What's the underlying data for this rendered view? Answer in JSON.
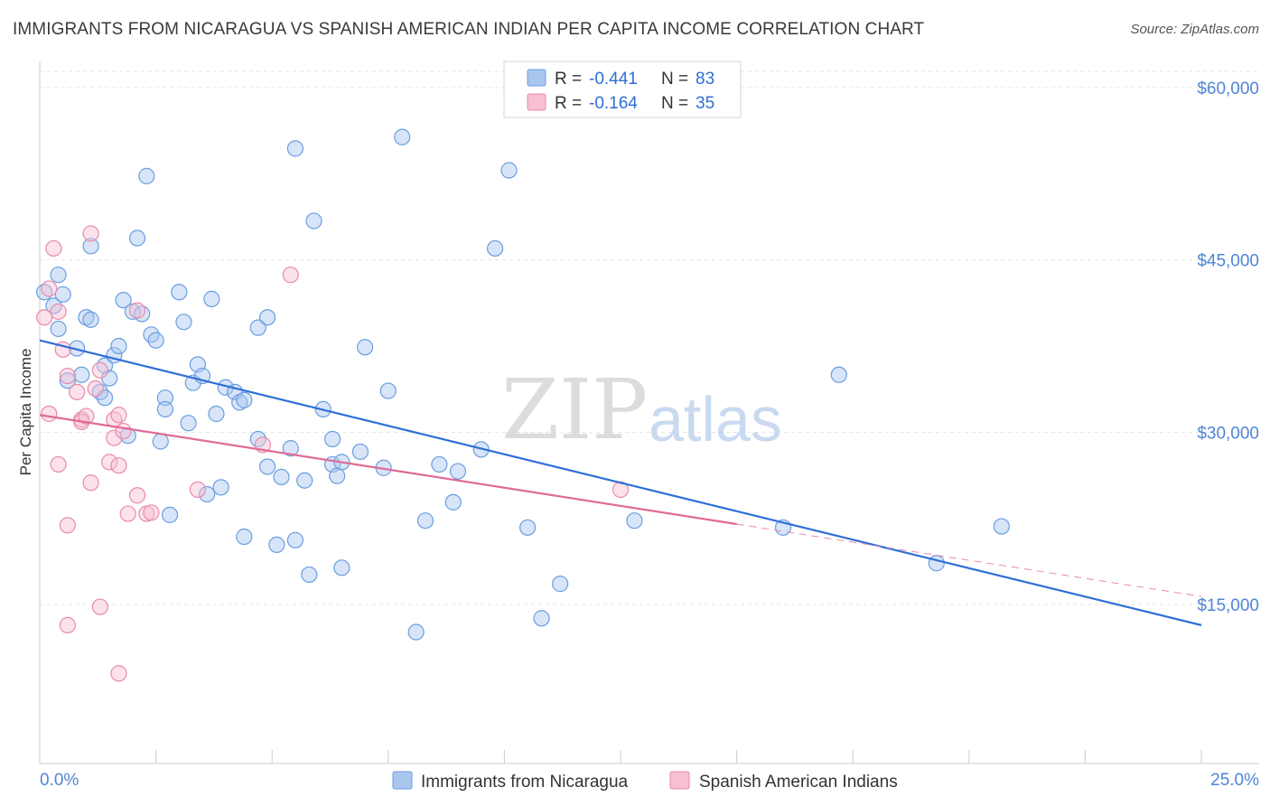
{
  "title": "IMMIGRANTS FROM NICARAGUA VS SPANISH AMERICAN INDIAN PER CAPITA INCOME CORRELATION CHART",
  "source": "Source: ZipAtlas.com",
  "watermark": {
    "zip": "ZIP",
    "atlas": "atlas"
  },
  "legend": {
    "rows": [
      {
        "r_label": "R = ",
        "r_value": "-0.441",
        "n_label": "N = ",
        "n_value": "83",
        "color": "#a9c6ef",
        "edge": "#6a9ee0"
      },
      {
        "r_label": "R = ",
        "r_value": "-0.164",
        "n_label": "N = ",
        "n_value": "35",
        "color": "#f7bfd2",
        "edge": "#e88aab"
      }
    ]
  },
  "chart_data": {
    "type": "scatter",
    "title": "IMMIGRANTS FROM NICARAGUA VS SPANISH AMERICAN INDIAN PER CAPITA INCOME CORRELATION CHART",
    "xlabel": "",
    "ylabel": "Per Capita Income",
    "xlim": [
      0,
      25
    ],
    "ylim": [
      3000,
      63000
    ],
    "x_tick_labels": [
      "0.0%",
      "25.0%"
    ],
    "y_ticks": [
      15000,
      30000,
      45000,
      60000
    ],
    "y_tick_labels": [
      "$15,000",
      "$30,000",
      "$45,000",
      "$60,000"
    ],
    "grid": true,
    "legend_position": "top-center",
    "series": [
      {
        "name": "Immigrants from Nicaragua",
        "color": "#6a9ee0",
        "fill": "#a9c6ef",
        "trend": {
          "x": [
            0,
            25
          ],
          "y": [
            38000,
            13200
          ]
        },
        "points": [
          [
            0.1,
            42200
          ],
          [
            0.3,
            41000
          ],
          [
            0.4,
            43700
          ],
          [
            0.5,
            42000
          ],
          [
            0.4,
            39000
          ],
          [
            0.6,
            34500
          ],
          [
            0.8,
            37300
          ],
          [
            0.9,
            35000
          ],
          [
            1.0,
            40000
          ],
          [
            1.1,
            39800
          ],
          [
            1.1,
            46200
          ],
          [
            1.3,
            33500
          ],
          [
            1.4,
            35800
          ],
          [
            1.4,
            33000
          ],
          [
            1.5,
            34700
          ],
          [
            1.6,
            36700
          ],
          [
            1.7,
            37500
          ],
          [
            1.8,
            41500
          ],
          [
            1.9,
            29700
          ],
          [
            2.0,
            40500
          ],
          [
            2.1,
            46900
          ],
          [
            2.2,
            40300
          ],
          [
            2.3,
            52300
          ],
          [
            2.4,
            38500
          ],
          [
            2.5,
            38000
          ],
          [
            2.6,
            29200
          ],
          [
            2.7,
            33000
          ],
          [
            2.7,
            32000
          ],
          [
            2.8,
            22800
          ],
          [
            3.0,
            42200
          ],
          [
            3.1,
            39600
          ],
          [
            3.2,
            30800
          ],
          [
            3.3,
            34300
          ],
          [
            3.4,
            35900
          ],
          [
            3.5,
            34900
          ],
          [
            3.6,
            24600
          ],
          [
            3.7,
            41600
          ],
          [
            3.8,
            31600
          ],
          [
            3.9,
            25200
          ],
          [
            4.0,
            33900
          ],
          [
            4.2,
            33500
          ],
          [
            4.3,
            32600
          ],
          [
            4.4,
            32800
          ],
          [
            4.4,
            20900
          ],
          [
            4.7,
            29400
          ],
          [
            4.7,
            39100
          ],
          [
            4.9,
            27000
          ],
          [
            4.9,
            40000
          ],
          [
            5.1,
            20200
          ],
          [
            5.2,
            26100
          ],
          [
            5.4,
            28600
          ],
          [
            5.5,
            20600
          ],
          [
            5.5,
            54700
          ],
          [
            5.7,
            25800
          ],
          [
            5.8,
            17600
          ],
          [
            5.9,
            48400
          ],
          [
            6.1,
            32000
          ],
          [
            6.3,
            29400
          ],
          [
            6.3,
            27200
          ],
          [
            6.4,
            26200
          ],
          [
            6.5,
            18200
          ],
          [
            6.5,
            27400
          ],
          [
            6.9,
            28300
          ],
          [
            7.0,
            37400
          ],
          [
            7.4,
            26900
          ],
          [
            7.5,
            33600
          ],
          [
            7.8,
            55700
          ],
          [
            8.1,
            12600
          ],
          [
            8.3,
            22300
          ],
          [
            8.6,
            27200
          ],
          [
            8.9,
            23900
          ],
          [
            9.0,
            26600
          ],
          [
            9.5,
            28500
          ],
          [
            9.8,
            46000
          ],
          [
            10.1,
            52800
          ],
          [
            10.5,
            21700
          ],
          [
            10.8,
            13800
          ],
          [
            11.2,
            16800
          ],
          [
            12.8,
            22300
          ],
          [
            16.0,
            21700
          ],
          [
            17.2,
            35000
          ],
          [
            19.3,
            18600
          ],
          [
            20.7,
            21800
          ]
        ]
      },
      {
        "name": "Spanish American Indians",
        "color": "#e88aab",
        "fill": "#f7bfd2",
        "trend": {
          "x": [
            0,
            15
          ],
          "y": [
            31500,
            22000
          ]
        },
        "trend_dashed": {
          "x": [
            15,
            25
          ],
          "y": [
            22000,
            15700
          ]
        },
        "points": [
          [
            0.1,
            40000
          ],
          [
            0.2,
            31600
          ],
          [
            0.2,
            42500
          ],
          [
            0.3,
            46000
          ],
          [
            0.4,
            40500
          ],
          [
            0.4,
            27200
          ],
          [
            0.5,
            37200
          ],
          [
            0.6,
            21900
          ],
          [
            0.6,
            13200
          ],
          [
            0.6,
            34900
          ],
          [
            0.8,
            33500
          ],
          [
            0.9,
            31100
          ],
          [
            0.9,
            30900
          ],
          [
            1.0,
            31400
          ],
          [
            1.1,
            47300
          ],
          [
            1.1,
            25600
          ],
          [
            1.2,
            33800
          ],
          [
            1.3,
            14800
          ],
          [
            1.3,
            35400
          ],
          [
            1.5,
            27400
          ],
          [
            1.6,
            29500
          ],
          [
            1.6,
            31100
          ],
          [
            1.7,
            9000
          ],
          [
            1.7,
            31500
          ],
          [
            1.7,
            27100
          ],
          [
            1.8,
            30100
          ],
          [
            1.9,
            22900
          ],
          [
            2.1,
            40600
          ],
          [
            2.1,
            24500
          ],
          [
            2.3,
            22900
          ],
          [
            3.4,
            25000
          ],
          [
            4.8,
            28900
          ],
          [
            5.4,
            43700
          ],
          [
            12.5,
            25000
          ],
          [
            2.4,
            23000
          ]
        ]
      }
    ]
  }
}
